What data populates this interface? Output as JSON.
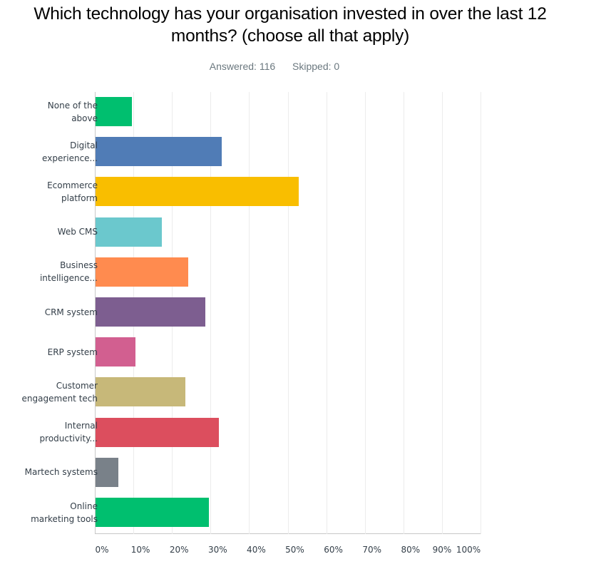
{
  "header": {
    "title": "Which technology has your organisation invested in over the last 12 months? (choose all that apply)",
    "answered": "Answered: 116",
    "skipped": "Skipped: 0"
  },
  "chart_data": {
    "type": "bar",
    "orientation": "horizontal",
    "title": "Which technology has your organisation invested in over the last 12 months? (choose all that apply)",
    "xlabel": "",
    "ylabel": "",
    "xlim": [
      0,
      100
    ],
    "x_tick_labels": [
      "0%",
      "10%",
      "20%",
      "30%",
      "40%",
      "50%",
      "60%",
      "70%",
      "80%",
      "90%",
      "100%"
    ],
    "grid": true,
    "legend": null,
    "categories": [
      "None of the above",
      "Digital experience...",
      "Ecommerce platform",
      "Web CMS",
      "Business intelligence...",
      "CRM system",
      "ERP system",
      "Customer engagement tech",
      "Internal productivity...",
      "Martech systems",
      "Online marketing tools"
    ],
    "values": [
      9.5,
      32.8,
      52.6,
      17.2,
      24.1,
      28.4,
      10.3,
      23.3,
      31.9,
      6.0,
      29.3
    ],
    "colors": [
      "#00bf6f",
      "#507cb6",
      "#f9be00",
      "#6bc8cd",
      "#ff8b4f",
      "#7d5e90",
      "#d25f90",
      "#c7b879",
      "#dc4e5e",
      "#798189",
      "#00bf6f"
    ],
    "units": "%"
  },
  "labels": [
    [
      "None of the",
      "above"
    ],
    [
      "Digital",
      "experience..."
    ],
    [
      "Ecommerce",
      "platform"
    ],
    [
      "Web CMS"
    ],
    [
      "Business",
      "intelligence..."
    ],
    [
      "CRM system"
    ],
    [
      "ERP system"
    ],
    [
      "Customer",
      "engagement tech"
    ],
    [
      "Internal",
      "productivity..."
    ],
    [
      "Martech systems"
    ],
    [
      "Online",
      "marketing tools"
    ]
  ]
}
